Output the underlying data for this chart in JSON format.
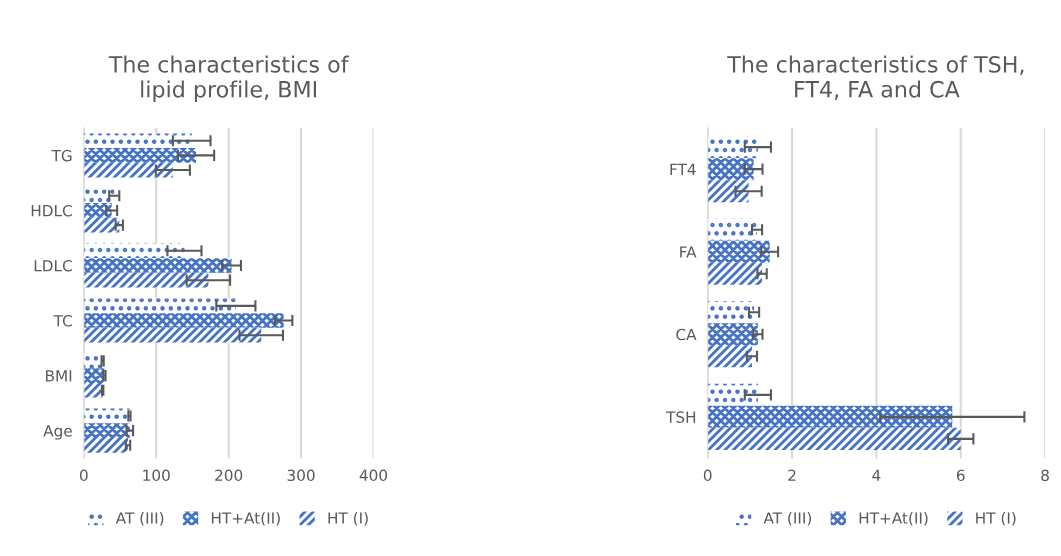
{
  "chart_data": [
    {
      "type": "bar",
      "orientation": "horizontal",
      "title": "The characteristics of\nlipid profile, BMI",
      "categories": [
        "TG",
        "HDLC",
        "LDLC",
        "TC",
        "BMI",
        "Age"
      ],
      "series": [
        {
          "name": "AT (III)",
          "color": "#4472c4",
          "values": [
            149,
            42,
            139,
            210,
            26,
            63
          ],
          "errors": [
            26,
            7,
            23.5,
            27,
            1.5,
            1.5
          ]
        },
        {
          "name": "HT+At(II)",
          "color": "#4472c4",
          "values": [
            155,
            38.5,
            204,
            276,
            28.5,
            63.5
          ],
          "errors": [
            25,
            7.5,
            13,
            12,
            1.5,
            4.5
          ]
        },
        {
          "name": "HT (I)",
          "color": "#4472c4",
          "values": [
            123,
            49,
            172,
            245,
            26,
            61
          ],
          "errors": [
            23.5,
            5,
            30,
            30,
            1,
            3
          ]
        }
      ],
      "xlim": [
        0,
        400
      ],
      "xticks": [
        0,
        100,
        200,
        300,
        400
      ],
      "grid": "x",
      "legend": "bottom"
    },
    {
      "type": "bar",
      "orientation": "horizontal",
      "title": "The characteristics of TSH,\nFT4, FA and CA",
      "categories": [
        "FT4",
        "FA",
        "CA",
        "TSH"
      ],
      "series": [
        {
          "name": "AT (III)",
          "color": "#4472c4",
          "values": [
            1.19,
            1.17,
            1.1,
            1.19
          ],
          "errors": [
            0.31,
            0.12,
            0.12,
            0.31
          ]
        },
        {
          "name": "HT+At(II)",
          "color": "#4472c4",
          "values": [
            1.09,
            1.47,
            1.19,
            5.8
          ],
          "errors": [
            0.21,
            0.2,
            0.11,
            1.71
          ]
        },
        {
          "name": "HT (I)",
          "color": "#4472c4",
          "values": [
            0.97,
            1.29,
            1.05,
            6.0
          ],
          "errors": [
            0.31,
            0.11,
            0.12,
            0.3
          ]
        }
      ],
      "xlim": [
        0,
        8
      ],
      "xticks": [
        0,
        2,
        4,
        6,
        8
      ],
      "grid": "x",
      "legend": "bottom"
    }
  ]
}
